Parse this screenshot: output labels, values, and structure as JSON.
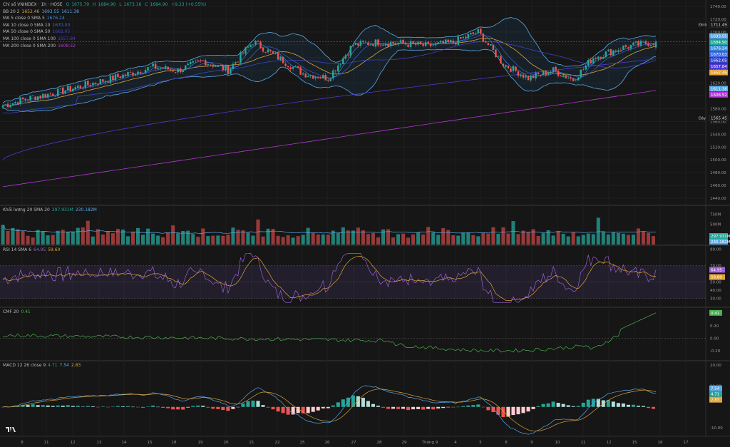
{
  "header": {
    "title": "Chỉ số VNINDEX · 1h · HOSE",
    "o_label": "O",
    "o": "1675.79",
    "h_label": "H",
    "h": "1684.90",
    "l_label": "L",
    "l": "1673.16",
    "c_label": "C",
    "c": "1684.90",
    "chg": "+9.23 (+0.55%)"
  },
  "indicators": [
    {
      "label": "BB 20 2",
      "values": [
        "1652.46",
        "1693.55",
        "1611.38"
      ],
      "colors": [
        "#e0a339",
        "#5aa9e6",
        "#5aa9e6"
      ]
    },
    {
      "label": "MA 5 close 0 SMA 5",
      "values": [
        "1676.24"
      ],
      "colors": [
        "#3d8ee6"
      ]
    },
    {
      "label": "MA 10 close 0 SMA 10",
      "values": [
        "1670.03"
      ],
      "colors": [
        "#3f6be6"
      ]
    },
    {
      "label": "MA 50 close 0 SMA 50",
      "values": [
        "1662.05"
      ],
      "colors": [
        "#3a44c9"
      ]
    },
    {
      "label": "MA 100 close 0 SMA 100",
      "values": [
        "1657.84"
      ],
      "colors": [
        "#4d3bd1"
      ]
    },
    {
      "label": "MA 200 close 0 SMA 200",
      "values": [
        "1608.52"
      ],
      "colors": [
        "#b03ad1"
      ]
    }
  ],
  "volume_legend": {
    "label": "Khối lượng 20 SMA 20",
    "values": [
      "297.931M",
      "230.182M"
    ],
    "colors": [
      "#26a69a",
      "#5aa9e6"
    ]
  },
  "rsi_legend": {
    "label": "RSI 14 SMA 6",
    "values": [
      "64.95",
      "59.60"
    ],
    "colors": [
      "#9c5fd6",
      "#e0a339"
    ]
  },
  "cmf_legend": {
    "label": "CMF 20",
    "values": [
      "0.41"
    ],
    "colors": [
      "#4caf50"
    ]
  },
  "macd_legend": {
    "label": "MACD 12 26 close 9",
    "values": [
      "4.71",
      "7.54",
      "2.83"
    ],
    "colors": [
      "#26a69a",
      "#5aa9e6",
      "#e0a339"
    ]
  },
  "price_axis": {
    "ticks": [
      "1740.00",
      "1720.00",
      "1700.00",
      "1680.00",
      "1660.00",
      "1640.00",
      "1620.00",
      "1600.00",
      "1580.00",
      "1560.00",
      "1540.00",
      "1520.00",
      "1500.00",
      "1480.00",
      "1460.00",
      "1440.00"
    ]
  },
  "price_markers": [
    {
      "text": "Đỉnh",
      "value": "1711.49"
    },
    {
      "text": "Đáy",
      "value": "1565.45"
    }
  ],
  "price_badges": [
    "1693.55",
    "1684.90",
    "1676.24",
    "1670.03",
    "1662.05",
    "1657.84",
    "1652.46",
    "1611.38",
    "1608.52"
  ],
  "volume_axis": {
    "ticks": [
      "750M",
      "500M"
    ],
    "badges": [
      "297.931M",
      "230.182M"
    ]
  },
  "rsi_axis": {
    "ticks": [
      "90.00",
      "70.00",
      "50.00",
      "40.00",
      "30.00"
    ],
    "badges": [
      "64.95",
      "59.60"
    ]
  },
  "cmf_axis": {
    "ticks": [
      "0.20",
      "0.00",
      "-0.20"
    ],
    "badges": [
      "0.41"
    ]
  },
  "macd_axis": {
    "ticks": [
      "20.00",
      "10.00",
      "-10.00"
    ],
    "badges": [
      "7.54",
      "4.71",
      "2.83"
    ]
  },
  "time_axis": [
    "8",
    "11",
    "12",
    "13",
    "14",
    "15",
    "18",
    "19",
    "20",
    "21",
    "22",
    "25",
    "26",
    "27",
    "28",
    "29",
    "Tháng 9",
    "4",
    "5",
    "8",
    "9",
    "10",
    "11",
    "12",
    "15",
    "16",
    "17"
  ],
  "chart_data": {
    "type": "candlestick",
    "symbol": "VNINDEX",
    "interval": "1h",
    "exchange": "HOSE",
    "ylim": [
      1430,
      1750
    ],
    "last": {
      "open": 1675.79,
      "high": 1684.9,
      "low": 1673.16,
      "close": 1684.9
    },
    "close_path": [
      {
        "x": "8",
        "y": 1585
      },
      {
        "x": "11",
        "y": 1596
      },
      {
        "x": "12",
        "y": 1606
      },
      {
        "x": "13",
        "y": 1618
      },
      {
        "x": "14",
        "y": 1630
      },
      {
        "x": "15",
        "y": 1645
      },
      {
        "x": "18",
        "y": 1640
      },
      {
        "x": "19",
        "y": 1655
      },
      {
        "x": "20",
        "y": 1640
      },
      {
        "x": "21",
        "y": 1685
      },
      {
        "x": "22",
        "y": 1660
      },
      {
        "x": "25",
        "y": 1635
      },
      {
        "x": "26",
        "y": 1628
      },
      {
        "x": "27",
        "y": 1680
      },
      {
        "x": "28",
        "y": 1684
      },
      {
        "x": "29",
        "y": 1682
      },
      {
        "x": "Tháng 9",
        "y": 1678
      },
      {
        "x": "4",
        "y": 1684
      },
      {
        "x": "5",
        "y": 1700
      },
      {
        "x": "8",
        "y": 1650
      },
      {
        "x": "9",
        "y": 1628
      },
      {
        "x": "10",
        "y": 1640
      },
      {
        "x": "11",
        "y": 1625
      },
      {
        "x": "12",
        "y": 1660
      },
      {
        "x": "15",
        "y": 1676
      },
      {
        "x": "16",
        "y": 1684.9
      }
    ],
    "bollinger": {
      "basis": 1652.46,
      "upper": 1693.55,
      "lower": 1611.38
    },
    "sma": {
      "5": 1676.24,
      "10": 1670.03,
      "50": 1662.05,
      "100": 1657.84,
      "200": 1608.52
    },
    "volume": {
      "last": "297.931M",
      "sma20": "230.182M"
    },
    "rsi": {
      "value": 64.95,
      "sma": 59.6,
      "upper": 70,
      "lower": 30
    },
    "cmf": {
      "value": 0.41
    },
    "macd": {
      "macd": 7.54,
      "signal": 2.83,
      "hist": 4.71
    }
  }
}
